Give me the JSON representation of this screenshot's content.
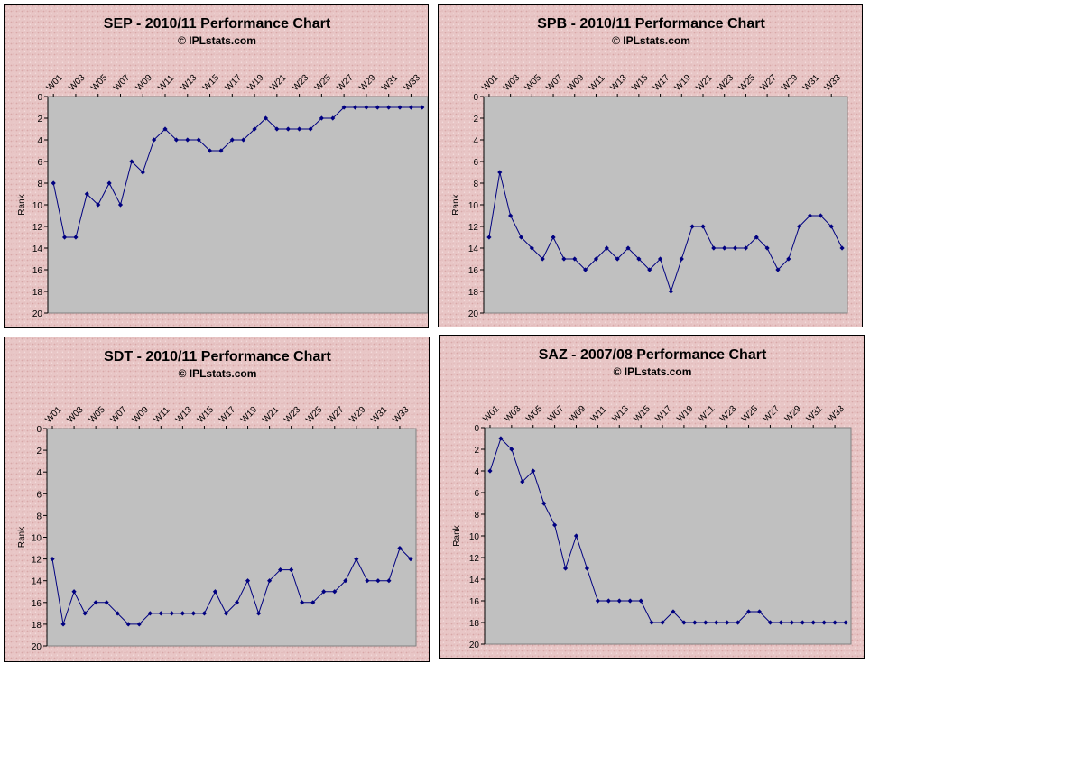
{
  "subtitle": "© IPLstats.com",
  "colors": {
    "panel_bg": "#e8c6c6",
    "plot_bg": "#c0c0c0",
    "line": "#000080"
  },
  "chart_data": [
    {
      "type": "line",
      "title": "SEP - 2010/11 Performance Chart",
      "xlabel": "",
      "ylabel": "Rank",
      "ylim": [
        0,
        20
      ],
      "y_inverted": true,
      "y_ticks": [
        0,
        2,
        4,
        6,
        8,
        10,
        12,
        14,
        16,
        18,
        20
      ],
      "x_tick_labels": [
        "W01",
        "W03",
        "W05",
        "W07",
        "W09",
        "W11",
        "W13",
        "W15",
        "W17",
        "W19",
        "W21",
        "W23",
        "W25",
        "W27",
        "W29",
        "W31",
        "W33"
      ],
      "grid": false,
      "values": [
        8,
        13,
        13,
        9,
        10,
        8,
        10,
        6,
        7,
        4,
        3,
        4,
        4,
        4,
        5,
        5,
        4,
        4,
        3,
        2,
        3,
        3,
        3,
        3,
        2,
        2,
        1,
        1,
        1,
        1,
        1,
        1,
        1,
        1
      ]
    },
    {
      "type": "line",
      "title": "SPB - 2010/11 Performance Chart",
      "xlabel": "",
      "ylabel": "Rank",
      "ylim": [
        0,
        20
      ],
      "y_inverted": true,
      "y_ticks": [
        0,
        2,
        4,
        6,
        8,
        10,
        12,
        14,
        16,
        18,
        20
      ],
      "x_tick_labels": [
        "W01",
        "W03",
        "W05",
        "W07",
        "W09",
        "W11",
        "W13",
        "W15",
        "W17",
        "W19",
        "W21",
        "W23",
        "W25",
        "W27",
        "W29",
        "W31",
        "W33"
      ],
      "grid": false,
      "values": [
        13,
        7,
        11,
        13,
        14,
        15,
        13,
        15,
        15,
        16,
        15,
        14,
        15,
        14,
        15,
        16,
        15,
        18,
        15,
        12,
        12,
        14,
        14,
        14,
        14,
        13,
        14,
        16,
        15,
        12,
        11,
        11,
        12,
        14
      ]
    },
    {
      "type": "line",
      "title": "SDT - 2010/11 Performance Chart",
      "xlabel": "",
      "ylabel": "Rank",
      "ylim": [
        0,
        20
      ],
      "y_inverted": true,
      "y_ticks": [
        0,
        2,
        4,
        6,
        8,
        10,
        12,
        14,
        16,
        18,
        20
      ],
      "x_tick_labels": [
        "W01",
        "W03",
        "W05",
        "W07",
        "W09",
        "W11",
        "W13",
        "W15",
        "W17",
        "W19",
        "W21",
        "W23",
        "W25",
        "W27",
        "W29",
        "W31",
        "W33"
      ],
      "grid": false,
      "values": [
        12,
        18,
        15,
        17,
        16,
        16,
        17,
        18,
        18,
        17,
        17,
        17,
        17,
        17,
        17,
        15,
        17,
        16,
        14,
        17,
        14,
        13,
        13,
        16,
        16,
        15,
        15,
        14,
        12,
        14,
        14,
        14,
        11,
        12
      ]
    },
    {
      "type": "line",
      "title": "SAZ - 2007/08 Performance Chart",
      "xlabel": "",
      "ylabel": "Rank",
      "ylim": [
        0,
        20
      ],
      "y_inverted": true,
      "y_ticks": [
        0,
        2,
        4,
        6,
        8,
        10,
        12,
        14,
        16,
        18,
        20
      ],
      "x_tick_labels": [
        "W01",
        "W03",
        "W05",
        "W07",
        "W09",
        "W11",
        "W13",
        "W15",
        "W17",
        "W19",
        "W21",
        "W23",
        "W25",
        "W27",
        "W29",
        "W31",
        "W33"
      ],
      "grid": false,
      "values": [
        4,
        1,
        2,
        5,
        4,
        7,
        9,
        13,
        10,
        13,
        16,
        16,
        16,
        16,
        16,
        18,
        18,
        17,
        18,
        18,
        18,
        18,
        18,
        18,
        17,
        17,
        18,
        18,
        18,
        18,
        18,
        18,
        18,
        18
      ]
    }
  ]
}
